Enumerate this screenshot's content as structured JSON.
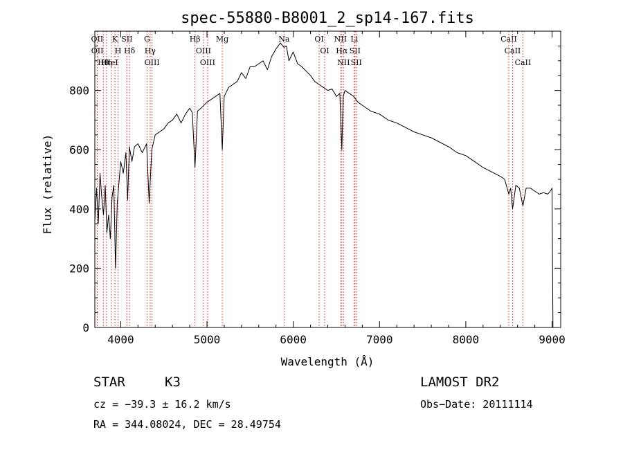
{
  "chart_data": {
    "type": "line",
    "title": "spec-55880-B8001_2_sp14-167.fits",
    "xlabel": "Wavelength (Å)",
    "ylabel": "Flux (relative)",
    "xlim": [
      3700,
      9100
    ],
    "ylim": [
      0,
      1000
    ],
    "xticks": [
      4000,
      5000,
      6000,
      7000,
      8000,
      9000
    ],
    "yticks": [
      0,
      200,
      400,
      600,
      800
    ],
    "grid": false,
    "lines": [
      {
        "label": "Hθ",
        "x": 3798
      },
      {
        "label": "OII",
        "x": 3727
      },
      {
        "label": "OII",
        "x": 3729
      },
      {
        "label": "Hη",
        "x": 3835
      },
      {
        "label": "HeI",
        "x": 3889
      },
      {
        "label": "K",
        "x": 3934
      },
      {
        "label": "H",
        "x": 3969
      },
      {
        "label": "SII",
        "x": 4072
      },
      {
        "label": "Hδ",
        "x": 4102
      },
      {
        "label": "G",
        "x": 4305
      },
      {
        "label": "Hγ",
        "x": 4341
      },
      {
        "label": "OIII",
        "x": 4363
      },
      {
        "label": "Hβ",
        "x": 4861
      },
      {
        "label": "OIII",
        "x": 4959
      },
      {
        "label": "OIII",
        "x": 5007
      },
      {
        "label": "Mg",
        "x": 5177
      },
      {
        "label": "Na",
        "x": 5893
      },
      {
        "label": "OI",
        "x": 6300
      },
      {
        "label": "OI",
        "x": 6364
      },
      {
        "label": "NII",
        "x": 6548
      },
      {
        "label": "Hα",
        "x": 6563
      },
      {
        "label": "NII",
        "x": 6583
      },
      {
        "label": "Li",
        "x": 6708
      },
      {
        "label": "SII",
        "x": 6716
      },
      {
        "label": "SII",
        "x": 6731
      },
      {
        "label": "CaII",
        "x": 8498
      },
      {
        "label": "CaII",
        "x": 8542
      },
      {
        "label": "CaII",
        "x": 8662
      }
    ],
    "series": [
      {
        "x": [
          3700,
          3720,
          3740,
          3760,
          3780,
          3800,
          3820,
          3840,
          3860,
          3880,
          3900,
          3920,
          3940,
          3960,
          3980,
          4000,
          4030,
          4060,
          4080,
          4100,
          4130,
          4160,
          4200,
          4250,
          4300,
          4330,
          4360,
          4400,
          4450,
          4500,
          4550,
          4600,
          4650,
          4700,
          4750,
          4800,
          4830,
          4861,
          4890,
          4930,
          5000,
          5050,
          5100,
          5150,
          5177,
          5200,
          5250,
          5300,
          5350,
          5400,
          5450,
          5500,
          5550,
          5600,
          5650,
          5700,
          5750,
          5800,
          5850,
          5893,
          5920,
          5950,
          6000,
          6050,
          6100,
          6150,
          6200,
          6250,
          6300,
          6350,
          6400,
          6450,
          6500,
          6540,
          6563,
          6580,
          6600,
          6650,
          6700,
          6750,
          6800,
          6900,
          7000,
          7100,
          7200,
          7300,
          7400,
          7500,
          7600,
          7700,
          7800,
          7900,
          8000,
          8100,
          8200,
          8300,
          8400,
          8450,
          8498,
          8520,
          8542,
          8580,
          8620,
          8662,
          8700,
          8750,
          8800,
          8850,
          8900,
          8950,
          8980,
          9000,
          9010
        ],
        "y": [
          360,
          470,
          350,
          520,
          440,
          380,
          480,
          320,
          380,
          300,
          440,
          480,
          200,
          420,
          490,
          560,
          520,
          590,
          430,
          610,
          560,
          610,
          620,
          590,
          620,
          420,
          600,
          650,
          660,
          670,
          690,
          700,
          720,
          690,
          720,
          740,
          725,
          540,
          730,
          740,
          760,
          770,
          780,
          790,
          600,
          780,
          810,
          820,
          830,
          860,
          840,
          880,
          880,
          890,
          900,
          870,
          915,
          940,
          960,
          945,
          950,
          900,
          930,
          890,
          880,
          865,
          850,
          830,
          820,
          810,
          800,
          805,
          780,
          790,
          600,
          780,
          800,
          790,
          780,
          760,
          750,
          730,
          720,
          700,
          690,
          675,
          660,
          650,
          640,
          625,
          610,
          590,
          580,
          560,
          540,
          525,
          510,
          500,
          450,
          470,
          400,
          480,
          470,
          410,
          470,
          470,
          460,
          450,
          455,
          450,
          460,
          470,
          0
        ]
      }
    ]
  },
  "info": {
    "object_class": "STAR",
    "subclass": "K3",
    "survey": "LAMOST DR2",
    "cz": "cz = −39.3 ± 16.2 km/s",
    "obs_date": "Obs−Date: 20111114",
    "coords": "RA = 344.08024, DEC =  28.49754"
  }
}
